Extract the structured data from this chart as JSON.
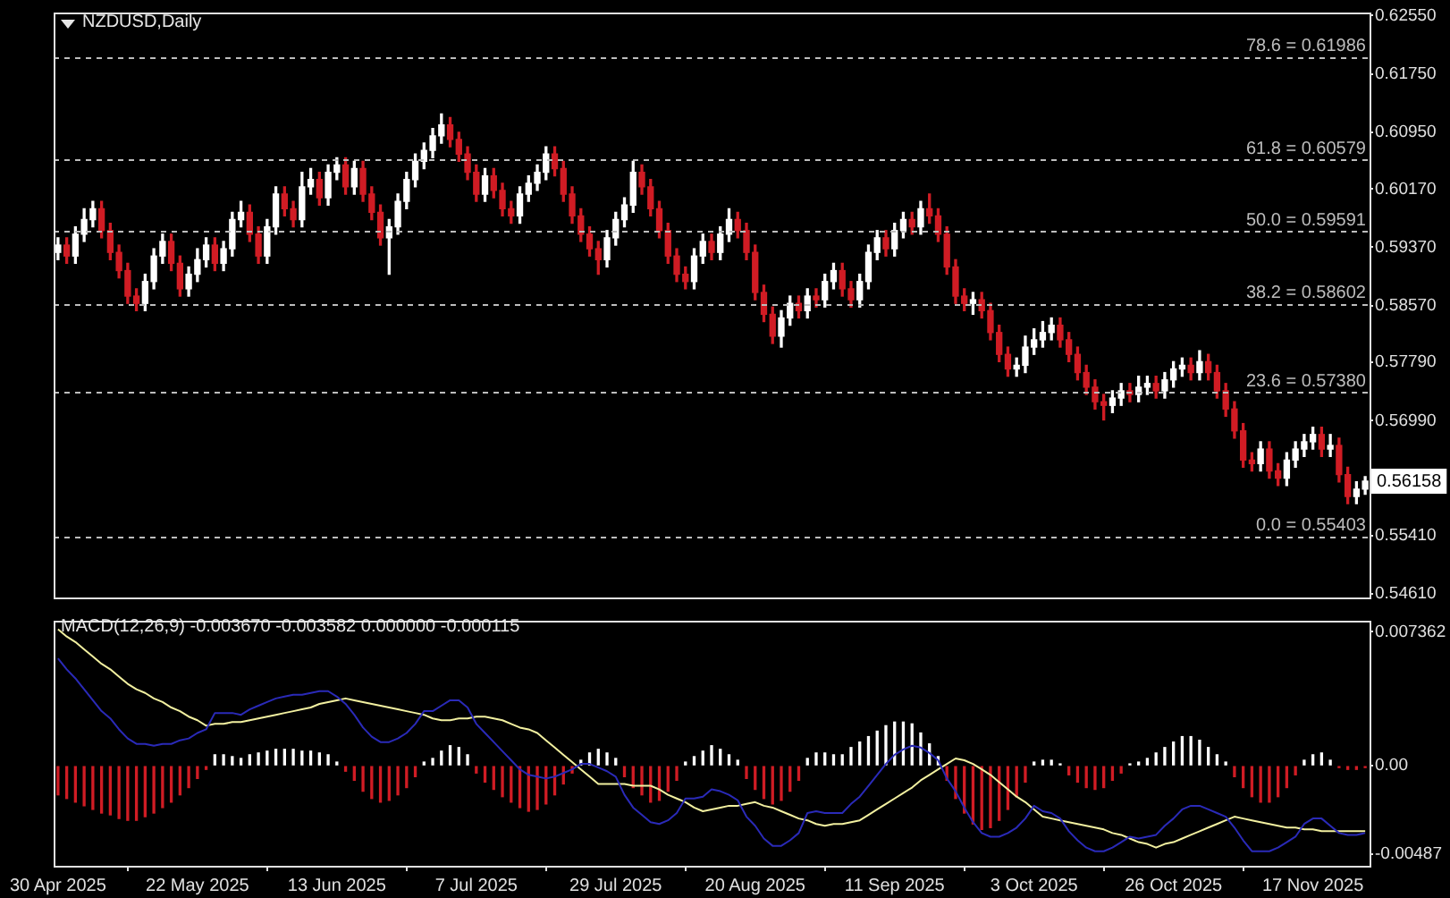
{
  "chart_data": [
    {
      "type": "candlestick",
      "title": "NZDUSD,Daily",
      "tick_labels": "y",
      "categories": [
        null,
        null,
        null,
        null,
        null,
        null,
        null,
        null,
        null,
        null,
        null,
        null,
        null,
        null,
        null,
        null,
        null,
        null,
        null,
        null,
        null,
        null,
        null,
        null,
        null,
        null,
        null,
        null,
        null,
        null,
        null,
        null,
        null,
        null,
        null,
        null,
        null,
        null,
        null,
        null,
        null,
        null,
        null,
        null,
        null,
        null,
        null,
        null,
        null,
        null,
        null,
        null,
        null,
        null,
        null,
        null,
        null,
        null,
        null,
        null,
        null,
        null,
        null,
        null,
        null,
        null,
        null,
        null,
        null,
        null,
        null,
        null,
        null,
        null,
        null,
        null,
        null,
        null,
        null,
        null,
        null,
        null,
        null,
        null,
        null,
        null,
        null,
        null,
        null,
        null,
        null,
        null,
        null,
        null,
        null,
        null,
        null,
        null,
        null,
        null,
        null,
        null,
        null,
        null,
        null,
        null,
        null,
        null,
        null,
        null,
        null,
        null,
        null,
        null,
        null,
        null,
        null,
        null,
        null,
        null,
        null,
        null,
        null,
        null,
        null,
        null,
        null,
        null,
        null,
        null,
        null,
        null,
        null,
        null,
        null,
        null,
        null,
        null,
        null,
        null,
        null,
        null,
        null,
        null,
        null,
        null,
        null,
        null,
        null,
        null,
        null
      ],
      "ohlc": [
        [
          0.593,
          0.595,
          0.592,
          0.594
        ],
        [
          0.594,
          0.595,
          0.5915,
          0.5925
        ],
        [
          0.5925,
          0.5965,
          0.5915,
          0.5955
        ],
        [
          0.5955,
          0.599,
          0.5945,
          0.5975
        ],
        [
          0.5975,
          0.6,
          0.5965,
          0.599
        ],
        [
          0.599,
          0.6,
          0.595,
          0.596
        ],
        [
          0.596,
          0.597,
          0.592,
          0.593
        ],
        [
          0.593,
          0.594,
          0.5895,
          0.5905
        ],
        [
          0.5905,
          0.5915,
          0.586,
          0.587
        ],
        [
          0.587,
          0.588,
          0.585,
          0.586
        ],
        [
          0.586,
          0.59,
          0.585,
          0.589
        ],
        [
          0.589,
          0.5935,
          0.588,
          0.5925
        ],
        [
          0.5925,
          0.5955,
          0.5915,
          0.5945
        ],
        [
          0.5945,
          0.5955,
          0.5905,
          0.5915
        ],
        [
          0.5915,
          0.5925,
          0.587,
          0.588
        ],
        [
          0.588,
          0.591,
          0.587,
          0.59
        ],
        [
          0.59,
          0.5935,
          0.589,
          0.592
        ],
        [
          0.592,
          0.595,
          0.591,
          0.594
        ],
        [
          0.594,
          0.595,
          0.5905,
          0.5915
        ],
        [
          0.5915,
          0.5945,
          0.5905,
          0.5935
        ],
        [
          0.5935,
          0.5985,
          0.5925,
          0.5975
        ],
        [
          0.5975,
          0.6,
          0.5965,
          0.5985
        ],
        [
          0.5985,
          0.5995,
          0.5945,
          0.5955
        ],
        [
          0.5955,
          0.5965,
          0.5915,
          0.5925
        ],
        [
          0.5925,
          0.5975,
          0.5915,
          0.5965
        ],
        [
          0.5965,
          0.602,
          0.5955,
          0.601
        ],
        [
          0.601,
          0.602,
          0.598,
          0.599
        ],
        [
          0.599,
          0.6,
          0.5965,
          0.5975
        ],
        [
          0.5975,
          0.604,
          0.5965,
          0.602
        ],
        [
          0.602,
          0.6045,
          0.601,
          0.603
        ],
        [
          0.603,
          0.604,
          0.5995,
          0.6005
        ],
        [
          0.6005,
          0.605,
          0.5995,
          0.604
        ],
        [
          0.604,
          0.606,
          0.603,
          0.605
        ],
        [
          0.605,
          0.606,
          0.601,
          0.602
        ],
        [
          0.602,
          0.6055,
          0.601,
          0.6045
        ],
        [
          0.6045,
          0.6055,
          0.6,
          0.601
        ],
        [
          0.601,
          0.602,
          0.5975,
          0.5985
        ],
        [
          0.5985,
          0.5995,
          0.594,
          0.595
        ],
        [
          0.595,
          0.5975,
          0.59,
          0.5965
        ],
        [
          0.5965,
          0.601,
          0.5955,
          0.6
        ],
        [
          0.6,
          0.604,
          0.599,
          0.603
        ],
        [
          0.603,
          0.6065,
          0.602,
          0.6055
        ],
        [
          0.6055,
          0.608,
          0.6045,
          0.607
        ],
        [
          0.607,
          0.61,
          0.606,
          0.609
        ],
        [
          0.609,
          0.612,
          0.608,
          0.6105
        ],
        [
          0.6105,
          0.6115,
          0.6075,
          0.6085
        ],
        [
          0.6085,
          0.6095,
          0.6055,
          0.6065
        ],
        [
          0.6065,
          0.6075,
          0.603,
          0.604
        ],
        [
          0.604,
          0.605,
          0.6,
          0.601
        ],
        [
          0.601,
          0.6045,
          0.6,
          0.6035
        ],
        [
          0.6035,
          0.6045,
          0.6005,
          0.6015
        ],
        [
          0.6015,
          0.6025,
          0.598,
          0.599
        ],
        [
          0.599,
          0.6,
          0.597,
          0.598
        ],
        [
          0.598,
          0.602,
          0.597,
          0.601
        ],
        [
          0.601,
          0.6035,
          0.6,
          0.6025
        ],
        [
          0.6025,
          0.605,
          0.6015,
          0.604
        ],
        [
          0.604,
          0.6075,
          0.603,
          0.6065
        ],
        [
          0.6065,
          0.6075,
          0.6035,
          0.6045
        ],
        [
          0.6045,
          0.6055,
          0.6,
          0.601
        ],
        [
          0.601,
          0.602,
          0.597,
          0.598
        ],
        [
          0.598,
          0.599,
          0.5945,
          0.5955
        ],
        [
          0.5955,
          0.5965,
          0.5925,
          0.5935
        ],
        [
          0.5935,
          0.5945,
          0.59,
          0.592
        ],
        [
          0.592,
          0.596,
          0.591,
          0.595
        ],
        [
          0.595,
          0.5985,
          0.594,
          0.5975
        ],
        [
          0.5975,
          0.6005,
          0.5965,
          0.5995
        ],
        [
          0.5995,
          0.6055,
          0.5985,
          0.604
        ],
        [
          0.604,
          0.605,
          0.601,
          0.602
        ],
        [
          0.602,
          0.603,
          0.598,
          0.599
        ],
        [
          0.599,
          0.6,
          0.595,
          0.596
        ],
        [
          0.596,
          0.597,
          0.5915,
          0.5925
        ],
        [
          0.5925,
          0.5935,
          0.589,
          0.59
        ],
        [
          0.59,
          0.591,
          0.588,
          0.589
        ],
        [
          0.589,
          0.5935,
          0.588,
          0.5925
        ],
        [
          0.5925,
          0.5955,
          0.5915,
          0.5945
        ],
        [
          0.5945,
          0.5955,
          0.592,
          0.593
        ],
        [
          0.593,
          0.5965,
          0.592,
          0.5955
        ],
        [
          0.5955,
          0.599,
          0.5945,
          0.5975
        ],
        [
          0.5975,
          0.5985,
          0.595,
          0.596
        ],
        [
          0.596,
          0.597,
          0.592,
          0.593
        ],
        [
          0.593,
          0.594,
          0.5865,
          0.5875
        ],
        [
          0.5875,
          0.5885,
          0.5835,
          0.5845
        ],
        [
          0.5845,
          0.5855,
          0.5805,
          0.5815
        ],
        [
          0.5815,
          0.585,
          0.58,
          0.584
        ],
        [
          0.584,
          0.587,
          0.583,
          0.586
        ],
        [
          0.586,
          0.587,
          0.584,
          0.585
        ],
        [
          0.585,
          0.588,
          0.584,
          0.587
        ],
        [
          0.587,
          0.588,
          0.5855,
          0.5865
        ],
        [
          0.5865,
          0.59,
          0.5855,
          0.589
        ],
        [
          0.589,
          0.5915,
          0.588,
          0.5905
        ],
        [
          0.5905,
          0.5915,
          0.587,
          0.588
        ],
        [
          0.588,
          0.589,
          0.5855,
          0.5865
        ],
        [
          0.5865,
          0.59,
          0.5855,
          0.589
        ],
        [
          0.589,
          0.594,
          0.588,
          0.593
        ],
        [
          0.593,
          0.596,
          0.592,
          0.595
        ],
        [
          0.595,
          0.596,
          0.5925,
          0.5935
        ],
        [
          0.5935,
          0.597,
          0.5925,
          0.596
        ],
        [
          0.596,
          0.5985,
          0.595,
          0.5975
        ],
        [
          0.5975,
          0.5985,
          0.5955,
          0.5965
        ],
        [
          0.5965,
          0.6,
          0.5955,
          0.599
        ],
        [
          0.599,
          0.601,
          0.597,
          0.598
        ],
        [
          0.598,
          0.599,
          0.5945,
          0.5955
        ],
        [
          0.5955,
          0.5965,
          0.59,
          0.591
        ],
        [
          0.591,
          0.592,
          0.586,
          0.587
        ],
        [
          0.587,
          0.588,
          0.585,
          0.586
        ],
        [
          0.586,
          0.5875,
          0.5845,
          0.5865
        ],
        [
          0.5865,
          0.5875,
          0.584,
          0.585
        ],
        [
          0.585,
          0.586,
          0.581,
          0.582
        ],
        [
          0.582,
          0.583,
          0.578,
          0.579
        ],
        [
          0.579,
          0.58,
          0.576,
          0.577
        ],
        [
          0.577,
          0.5785,
          0.576,
          0.5775
        ],
        [
          0.5775,
          0.5815,
          0.5765,
          0.58
        ],
        [
          0.58,
          0.5825,
          0.579,
          0.581
        ],
        [
          0.581,
          0.5835,
          0.58,
          0.582
        ],
        [
          0.582,
          0.584,
          0.581,
          0.583
        ],
        [
          0.583,
          0.584,
          0.58,
          0.581
        ],
        [
          0.581,
          0.582,
          0.578,
          0.579
        ],
        [
          0.579,
          0.58,
          0.5755,
          0.5765
        ],
        [
          0.5765,
          0.5775,
          0.5735,
          0.5745
        ],
        [
          0.5745,
          0.5755,
          0.5715,
          0.5725
        ],
        [
          0.5725,
          0.5735,
          0.57,
          0.572
        ],
        [
          0.572,
          0.574,
          0.571,
          0.573
        ],
        [
          0.573,
          0.575,
          0.572,
          0.574
        ],
        [
          0.574,
          0.575,
          0.5725,
          0.5735
        ],
        [
          0.5735,
          0.576,
          0.5725,
          0.5745
        ],
        [
          0.5745,
          0.576,
          0.5735,
          0.575
        ],
        [
          0.575,
          0.576,
          0.573,
          0.574
        ],
        [
          0.574,
          0.5765,
          0.573,
          0.5755
        ],
        [
          0.5755,
          0.578,
          0.5745,
          0.577
        ],
        [
          0.577,
          0.5785,
          0.576,
          0.5775
        ],
        [
          0.5775,
          0.5785,
          0.5755,
          0.5765
        ],
        [
          0.5765,
          0.5795,
          0.5755,
          0.578
        ],
        [
          0.578,
          0.579,
          0.5755,
          0.5765
        ],
        [
          0.5765,
          0.5775,
          0.573,
          0.574
        ],
        [
          0.574,
          0.575,
          0.5705,
          0.5715
        ],
        [
          0.5715,
          0.5725,
          0.5675,
          0.5685
        ],
        [
          0.5685,
          0.5695,
          0.5635,
          0.5645
        ],
        [
          0.5645,
          0.5655,
          0.563,
          0.564
        ],
        [
          0.564,
          0.567,
          0.563,
          0.566
        ],
        [
          0.566,
          0.567,
          0.562,
          0.563
        ],
        [
          0.563,
          0.564,
          0.561,
          0.562
        ],
        [
          0.562,
          0.5655,
          0.561,
          0.5645
        ],
        [
          0.5645,
          0.567,
          0.5635,
          0.566
        ],
        [
          0.566,
          0.568,
          0.565,
          0.567
        ],
        [
          0.567,
          0.569,
          0.566,
          0.568
        ],
        [
          0.568,
          0.569,
          0.565,
          0.566
        ],
        [
          0.566,
          0.568,
          0.565,
          0.5665
        ],
        [
          0.5665,
          0.5675,
          0.5615,
          0.5625
        ],
        [
          0.5625,
          0.5635,
          0.5585,
          0.5595
        ],
        [
          0.5595,
          0.5615,
          0.5585,
          0.5605
        ],
        [
          0.5605,
          0.5622,
          0.5598,
          0.5616
        ]
      ],
      "colors": [
        "#ffffff",
        "#d01c24",
        "#ffffff",
        "#ffffff",
        "#ffffff",
        "#d01c24",
        "#d01c24",
        "#d01c24",
        "#d01c24",
        "#d01c24",
        "#ffffff",
        "#ffffff",
        "#ffffff",
        "#d01c24",
        "#d01c24",
        "#ffffff",
        "#ffffff",
        "#ffffff",
        "#d01c24",
        "#ffffff",
        "#ffffff",
        "#ffffff",
        "#d01c24",
        "#d01c24",
        "#ffffff",
        "#ffffff",
        "#d01c24",
        "#d01c24",
        "#ffffff",
        "#ffffff",
        "#d01c24",
        "#ffffff",
        "#ffffff",
        "#d01c24",
        "#ffffff",
        "#d01c24",
        "#d01c24",
        "#d01c24",
        "#ffffff",
        "#ffffff",
        "#ffffff",
        "#ffffff",
        "#ffffff",
        "#ffffff",
        "#ffffff",
        "#d01c24",
        "#d01c24",
        "#d01c24",
        "#d01c24",
        "#ffffff",
        "#d01c24",
        "#d01c24",
        "#d01c24",
        "#ffffff",
        "#ffffff",
        "#ffffff",
        "#ffffff",
        "#d01c24",
        "#d01c24",
        "#d01c24",
        "#d01c24",
        "#d01c24",
        "#d01c24",
        "#ffffff",
        "#ffffff",
        "#ffffff",
        "#ffffff",
        "#d01c24",
        "#d01c24",
        "#d01c24",
        "#d01c24",
        "#d01c24",
        "#d01c24",
        "#ffffff",
        "#ffffff",
        "#d01c24",
        "#ffffff",
        "#ffffff",
        "#d01c24",
        "#d01c24",
        "#d01c24",
        "#d01c24",
        "#d01c24",
        "#ffffff",
        "#ffffff",
        "#d01c24",
        "#ffffff",
        "#d01c24",
        "#ffffff",
        "#ffffff",
        "#d01c24",
        "#d01c24",
        "#ffffff",
        "#ffffff",
        "#ffffff",
        "#d01c24",
        "#ffffff",
        "#ffffff",
        "#d01c24",
        "#ffffff",
        "#d01c24",
        "#d01c24",
        "#d01c24",
        "#d01c24",
        "#d01c24",
        "#ffffff",
        "#d01c24",
        "#d01c24",
        "#d01c24",
        "#d01c24",
        "#ffffff",
        "#ffffff",
        "#ffffff",
        "#ffffff",
        "#ffffff",
        "#d01c24",
        "#d01c24",
        "#d01c24",
        "#d01c24",
        "#d01c24",
        "#d01c24",
        "#ffffff",
        "#ffffff",
        "#d01c24",
        "#ffffff",
        "#ffffff",
        "#d01c24",
        "#ffffff",
        "#ffffff",
        "#ffffff",
        "#d01c24",
        "#ffffff",
        "#d01c24",
        "#d01c24",
        "#d01c24",
        "#d01c24",
        "#d01c24",
        "#d01c24",
        "#ffffff",
        "#d01c24",
        "#d01c24",
        "#ffffff",
        "#ffffff",
        "#ffffff",
        "#ffffff",
        "#d01c24",
        "#ffffff",
        "#d01c24",
        "#d01c24",
        "#ffffff",
        "#ffffff"
      ],
      "ylim": [
        0.5458,
        0.626
      ],
      "yticks": [
        {
          "value": 0.6255,
          "label": "0.62550"
        },
        {
          "value": 0.6175,
          "label": "0.61750"
        },
        {
          "value": 0.6095,
          "label": "0.60950"
        },
        {
          "value": 0.6017,
          "label": "0.60170"
        },
        {
          "value": 0.5937,
          "label": "0.59370"
        },
        {
          "value": 0.5857,
          "label": "0.58570"
        },
        {
          "value": 0.5779,
          "label": "0.57790"
        },
        {
          "value": 0.5699,
          "label": "0.56990"
        },
        {
          "value": 0.5541,
          "label": "0.55410"
        },
        {
          "value": 0.5461,
          "label": "0.54610"
        }
      ],
      "ref_lines": [
        {
          "axis": "y",
          "value": 0.61986,
          "label": "78.6 = 0.61986",
          "color": "#bdbdbd",
          "line_style": "dashed"
        },
        {
          "axis": "y",
          "value": 0.60579,
          "label": "61.8 = 0.60579",
          "color": "#bdbdbd",
          "line_style": "dashed"
        },
        {
          "axis": "y",
          "value": 0.59591,
          "label": "50.0 = 0.59591",
          "color": "#bdbdbd",
          "line_style": "dashed"
        },
        {
          "axis": "y",
          "value": 0.58602,
          "label": "38.2 = 0.58602",
          "color": "#bdbdbd",
          "line_style": "dashed"
        },
        {
          "axis": "y",
          "value": 0.5738,
          "label": "23.6 = 0.57380",
          "color": "#bdbdbd",
          "line_style": "dashed"
        },
        {
          "axis": "y",
          "value": 0.55403,
          "label": "0.0 = 0.55403",
          "color": "#bdbdbd",
          "line_style": "dashed"
        }
      ],
      "annotations": [
        {
          "text": "0.56158",
          "y": 0.56158
        }
      ]
    },
    {
      "type": "bar",
      "title": "MACD(12,26,9) -0.003670 -0.003582 0.000000 -0.000115",
      "categories": [
        "30 Apr 2025",
        null,
        null,
        null,
        null,
        null,
        null,
        null,
        null,
        null,
        null,
        null,
        null,
        null,
        null,
        null,
        "22 May 2025",
        null,
        null,
        null,
        null,
        null,
        null,
        null,
        null,
        null,
        null,
        null,
        null,
        null,
        null,
        null,
        "13 Jun 2025",
        null,
        null,
        null,
        null,
        null,
        null,
        null,
        null,
        null,
        null,
        null,
        null,
        null,
        null,
        null,
        "7 Jul 2025",
        null,
        null,
        null,
        null,
        null,
        null,
        null,
        null,
        null,
        null,
        null,
        null,
        null,
        null,
        null,
        "29 Jul 2025",
        null,
        null,
        null,
        null,
        null,
        null,
        null,
        null,
        null,
        null,
        null,
        null,
        null,
        null,
        null,
        "20 Aug 2025",
        null,
        null,
        null,
        null,
        null,
        null,
        null,
        null,
        null,
        null,
        null,
        null,
        null,
        null,
        null,
        "11 Sep 2025",
        null,
        null,
        null,
        null,
        null,
        null,
        null,
        null,
        null,
        null,
        null,
        null,
        null,
        null,
        null,
        "3 Oct 2025",
        null,
        null,
        null,
        null,
        null,
        null,
        null,
        null,
        null,
        null,
        null,
        null,
        null,
        null,
        null,
        "26 Oct 2025",
        null,
        null,
        null,
        null,
        null,
        null,
        null,
        null,
        null,
        null,
        null,
        null,
        null,
        null,
        null,
        "17 Nov 2025",
        null,
        null,
        null,
        null,
        null,
        null
      ],
      "series": [
        {
          "type": "bar",
          "values": [
            -0.0016,
            -0.0018,
            -0.002,
            -0.0022,
            -0.0024,
            -0.0026,
            -0.0027,
            -0.0029,
            -0.003,
            -0.003,
            -0.0028,
            -0.0026,
            -0.0023,
            -0.002,
            -0.0016,
            -0.0012,
            -0.0007,
            -0.0002,
            0.0006,
            0.0006,
            0.0005,
            0.0004,
            0.0006,
            0.0007,
            0.0008,
            0.0009,
            0.0009,
            0.0009,
            0.0008,
            0.0008,
            0.0007,
            0.0006,
            0.0002,
            -0.0003,
            -0.0008,
            -0.0014,
            -0.0018,
            -0.002,
            -0.0019,
            -0.0016,
            -0.0012,
            -0.0006,
            0.0002,
            0.0004,
            0.0008,
            0.0011,
            0.001,
            0.0006,
            -0.0004,
            -0.0009,
            -0.0013,
            -0.0017,
            -0.002,
            -0.0023,
            -0.0025,
            -0.0024,
            -0.0021,
            -0.0016,
            -0.001,
            -0.0004,
            0.0003,
            0.0007,
            0.0009,
            0.0007,
            0.0004,
            -0.0006,
            -0.0012,
            -0.0016,
            -0.002,
            -0.0019,
            -0.0014,
            -0.0008,
            0.0002,
            0.0005,
            0.0008,
            0.0011,
            0.0009,
            0.0006,
            0.0003,
            -0.0007,
            -0.0013,
            -0.0018,
            -0.0021,
            -0.0019,
            -0.0014,
            -0.0008,
            0.0004,
            0.0007,
            0.0007,
            0.0006,
            0.0006,
            0.001,
            0.0013,
            0.0016,
            0.0019,
            0.0022,
            0.0024,
            0.0024,
            0.0023,
            0.0018,
            0.0012,
            0.0005,
            -0.0008,
            -0.0018,
            -0.0026,
            -0.0032,
            -0.0035,
            -0.0034,
            -0.003,
            -0.0024,
            -0.0017,
            -0.0009,
            0.0002,
            0.0003,
            0.0003,
            0.0001,
            -0.0005,
            -0.0009,
            -0.0012,
            -0.0013,
            -0.0012,
            -0.0008,
            -0.0004,
            0.0001,
            0.0002,
            0.0004,
            0.0007,
            0.001,
            0.0013,
            0.0016,
            0.0016,
            0.0014,
            0.001,
            0.0006,
            0.0002,
            -0.0006,
            -0.0012,
            -0.0017,
            -0.002,
            -0.002,
            -0.0017,
            -0.0012,
            -0.0005,
            0.0003,
            0.0006,
            0.0007,
            0.0003,
            -0.0001,
            -0.0002,
            -0.0002,
            -0.0001
          ],
          "colors": [
            "#d01c24",
            "#d01c24",
            "#d01c24",
            "#d01c24",
            "#d01c24",
            "#d01c24",
            "#d01c24",
            "#d01c24",
            "#d01c24",
            "#d01c24",
            "#d01c24",
            "#d01c24",
            "#d01c24",
            "#d01c24",
            "#d01c24",
            "#d01c24",
            "#d01c24",
            "#d01c24",
            "#ffffff",
            "#ffffff",
            "#ffffff",
            "#ffffff",
            "#ffffff",
            "#ffffff",
            "#ffffff",
            "#ffffff",
            "#ffffff",
            "#ffffff",
            "#ffffff",
            "#ffffff",
            "#ffffff",
            "#ffffff",
            "#ffffff",
            "#d01c24",
            "#d01c24",
            "#d01c24",
            "#d01c24",
            "#d01c24",
            "#d01c24",
            "#d01c24",
            "#d01c24",
            "#d01c24",
            "#ffffff",
            "#ffffff",
            "#ffffff",
            "#ffffff",
            "#ffffff",
            "#ffffff",
            "#d01c24",
            "#d01c24",
            "#d01c24",
            "#d01c24",
            "#d01c24",
            "#d01c24",
            "#d01c24",
            "#d01c24",
            "#d01c24",
            "#d01c24",
            "#d01c24",
            "#d01c24",
            "#ffffff",
            "#ffffff",
            "#ffffff",
            "#ffffff",
            "#ffffff",
            "#d01c24",
            "#d01c24",
            "#d01c24",
            "#d01c24",
            "#d01c24",
            "#d01c24",
            "#d01c24",
            "#ffffff",
            "#ffffff",
            "#ffffff",
            "#ffffff",
            "#ffffff",
            "#ffffff",
            "#ffffff",
            "#d01c24",
            "#d01c24",
            "#d01c24",
            "#d01c24",
            "#d01c24",
            "#d01c24",
            "#d01c24",
            "#ffffff",
            "#ffffff",
            "#ffffff",
            "#ffffff",
            "#ffffff",
            "#ffffff",
            "#ffffff",
            "#ffffff",
            "#ffffff",
            "#ffffff",
            "#ffffff",
            "#ffffff",
            "#ffffff",
            "#ffffff",
            "#ffffff",
            "#ffffff",
            "#d01c24",
            "#d01c24",
            "#d01c24",
            "#d01c24",
            "#d01c24",
            "#d01c24",
            "#d01c24",
            "#d01c24",
            "#d01c24",
            "#d01c24",
            "#ffffff",
            "#ffffff",
            "#ffffff",
            "#ffffff",
            "#d01c24",
            "#d01c24",
            "#d01c24",
            "#d01c24",
            "#d01c24",
            "#d01c24",
            "#d01c24",
            "#ffffff",
            "#ffffff",
            "#ffffff",
            "#ffffff",
            "#ffffff",
            "#ffffff",
            "#ffffff",
            "#ffffff",
            "#ffffff",
            "#ffffff",
            "#ffffff",
            "#ffffff",
            "#d01c24",
            "#d01c24",
            "#d01c24",
            "#d01c24",
            "#d01c24",
            "#d01c24",
            "#d01c24",
            "#d01c24",
            "#ffffff",
            "#ffffff",
            "#ffffff",
            "#ffffff",
            "#d01c24",
            "#d01c24",
            "#d01c24",
            "#d01c24"
          ]
        },
        {
          "type": "line",
          "color": "#2a2ab8",
          "values": [
            0.0059,
            0.0053,
            0.0048,
            0.0042,
            0.0036,
            0.003,
            0.0026,
            0.002,
            0.0015,
            0.0012,
            0.0012,
            0.0011,
            0.0012,
            0.0012,
            0.0014,
            0.0015,
            0.0018,
            0.002,
            0.0029,
            0.0029,
            0.0029,
            0.0028,
            0.0031,
            0.0033,
            0.0035,
            0.0037,
            0.0038,
            0.0039,
            0.0039,
            0.004,
            0.0041,
            0.0041,
            0.0038,
            0.0034,
            0.0028,
            0.0021,
            0.0016,
            0.0013,
            0.0013,
            0.0015,
            0.0018,
            0.0023,
            0.003,
            0.003,
            0.0033,
            0.0036,
            0.0036,
            0.0032,
            0.0023,
            0.0018,
            0.0013,
            0.0008,
            0.0003,
            -0.0002,
            -0.0005,
            -0.0006,
            -0.0007,
            -0.0006,
            -0.0004,
            -0.0002,
            0.0001,
            0.0001,
            -0.0001,
            -0.0003,
            -0.0006,
            -0.0016,
            -0.0023,
            -0.0027,
            -0.0031,
            -0.0032,
            -0.003,
            -0.0026,
            -0.0018,
            -0.0018,
            -0.0017,
            -0.0013,
            -0.0014,
            -0.0016,
            -0.0019,
            -0.0028,
            -0.0033,
            -0.004,
            -0.0044,
            -0.0044,
            -0.0041,
            -0.0037,
            -0.0026,
            -0.0025,
            -0.0026,
            -0.0026,
            -0.0026,
            -0.0021,
            -0.0017,
            -0.0011,
            -0.0005,
            0.0001,
            0.0006,
            0.0009,
            0.0011,
            0.001,
            0.0007,
            0.0003,
            -0.0007,
            -0.0014,
            -0.0023,
            -0.0031,
            -0.0037,
            -0.0039,
            -0.0039,
            -0.0037,
            -0.0034,
            -0.0029,
            -0.0022,
            -0.0025,
            -0.0026,
            -0.0029,
            -0.0036,
            -0.0041,
            -0.0045,
            -0.0047,
            -0.0047,
            -0.0045,
            -0.0042,
            -0.0039,
            -0.004,
            -0.0039,
            -0.0038,
            -0.0033,
            -0.0029,
            -0.0024,
            -0.0022,
            -0.0022,
            -0.0024,
            -0.0026,
            -0.0028,
            -0.0034,
            -0.0041,
            -0.0047,
            -0.0047,
            -0.0047,
            -0.0045,
            -0.0042,
            -0.0039,
            -0.0032,
            -0.0029,
            -0.0029,
            -0.0033,
            -0.0037,
            -0.0038,
            -0.0038,
            -0.0037
          ]
        },
        {
          "type": "line",
          "color": "#f2f0a0",
          "values": [
            0.0075,
            0.0071,
            0.0068,
            0.0064,
            0.006,
            0.0056,
            0.0053,
            0.0049,
            0.0045,
            0.0042,
            0.004,
            0.0037,
            0.0035,
            0.0032,
            0.003,
            0.0027,
            0.0025,
            0.0022,
            0.0023,
            0.0023,
            0.0024,
            0.0024,
            0.0025,
            0.0026,
            0.0027,
            0.0028,
            0.0029,
            0.003,
            0.0031,
            0.0032,
            0.0034,
            0.0035,
            0.0036,
            0.0037,
            0.0036,
            0.0035,
            0.0034,
            0.0033,
            0.0032,
            0.0031,
            0.003,
            0.0029,
            0.0028,
            0.0026,
            0.0025,
            0.0025,
            0.0026,
            0.0026,
            0.0027,
            0.0027,
            0.0026,
            0.0025,
            0.0023,
            0.0021,
            0.002,
            0.0018,
            0.0014,
            0.001,
            0.0006,
            0.0002,
            -0.0002,
            -0.0006,
            -0.001,
            -0.001,
            -0.001,
            -0.001,
            -0.0011,
            -0.0011,
            -0.0011,
            -0.0013,
            -0.0016,
            -0.0018,
            -0.002,
            -0.0023,
            -0.0025,
            -0.0024,
            -0.0023,
            -0.0022,
            -0.0022,
            -0.0021,
            -0.002,
            -0.0022,
            -0.0023,
            -0.0025,
            -0.0027,
            -0.0029,
            -0.003,
            -0.0032,
            -0.0033,
            -0.0032,
            -0.0032,
            -0.0031,
            -0.003,
            -0.0027,
            -0.0024,
            -0.0021,
            -0.0018,
            -0.0015,
            -0.0012,
            -0.0008,
            -0.0005,
            -0.0002,
            0.0001,
            0.0004,
            0.0003,
            0.0001,
            -0.0002,
            -0.0005,
            -0.0009,
            -0.0013,
            -0.0017,
            -0.002,
            -0.0024,
            -0.0028,
            -0.0029,
            -0.003,
            -0.0031,
            -0.0032,
            -0.0033,
            -0.0034,
            -0.0035,
            -0.0037,
            -0.0038,
            -0.004,
            -0.0042,
            -0.0043,
            -0.0045,
            -0.0043,
            -0.0042,
            -0.004,
            -0.0038,
            -0.0036,
            -0.0034,
            -0.0032,
            -0.003,
            -0.0028,
            -0.0029,
            -0.003,
            -0.0031,
            -0.0032,
            -0.0033,
            -0.0034,
            -0.0034,
            -0.0035,
            -0.0035,
            -0.0036,
            -0.0036,
            -0.0036,
            -0.0036,
            -0.0036,
            -0.0036
          ]
        }
      ],
      "ylim": [
        -0.0055,
        0.008
      ],
      "yticks": [
        {
          "value": 0.007362,
          "label": "0.007362"
        },
        {
          "value": 0,
          "label": "0.00"
        },
        {
          "value": -0.00487,
          "label": "-0.00487"
        }
      ]
    }
  ]
}
